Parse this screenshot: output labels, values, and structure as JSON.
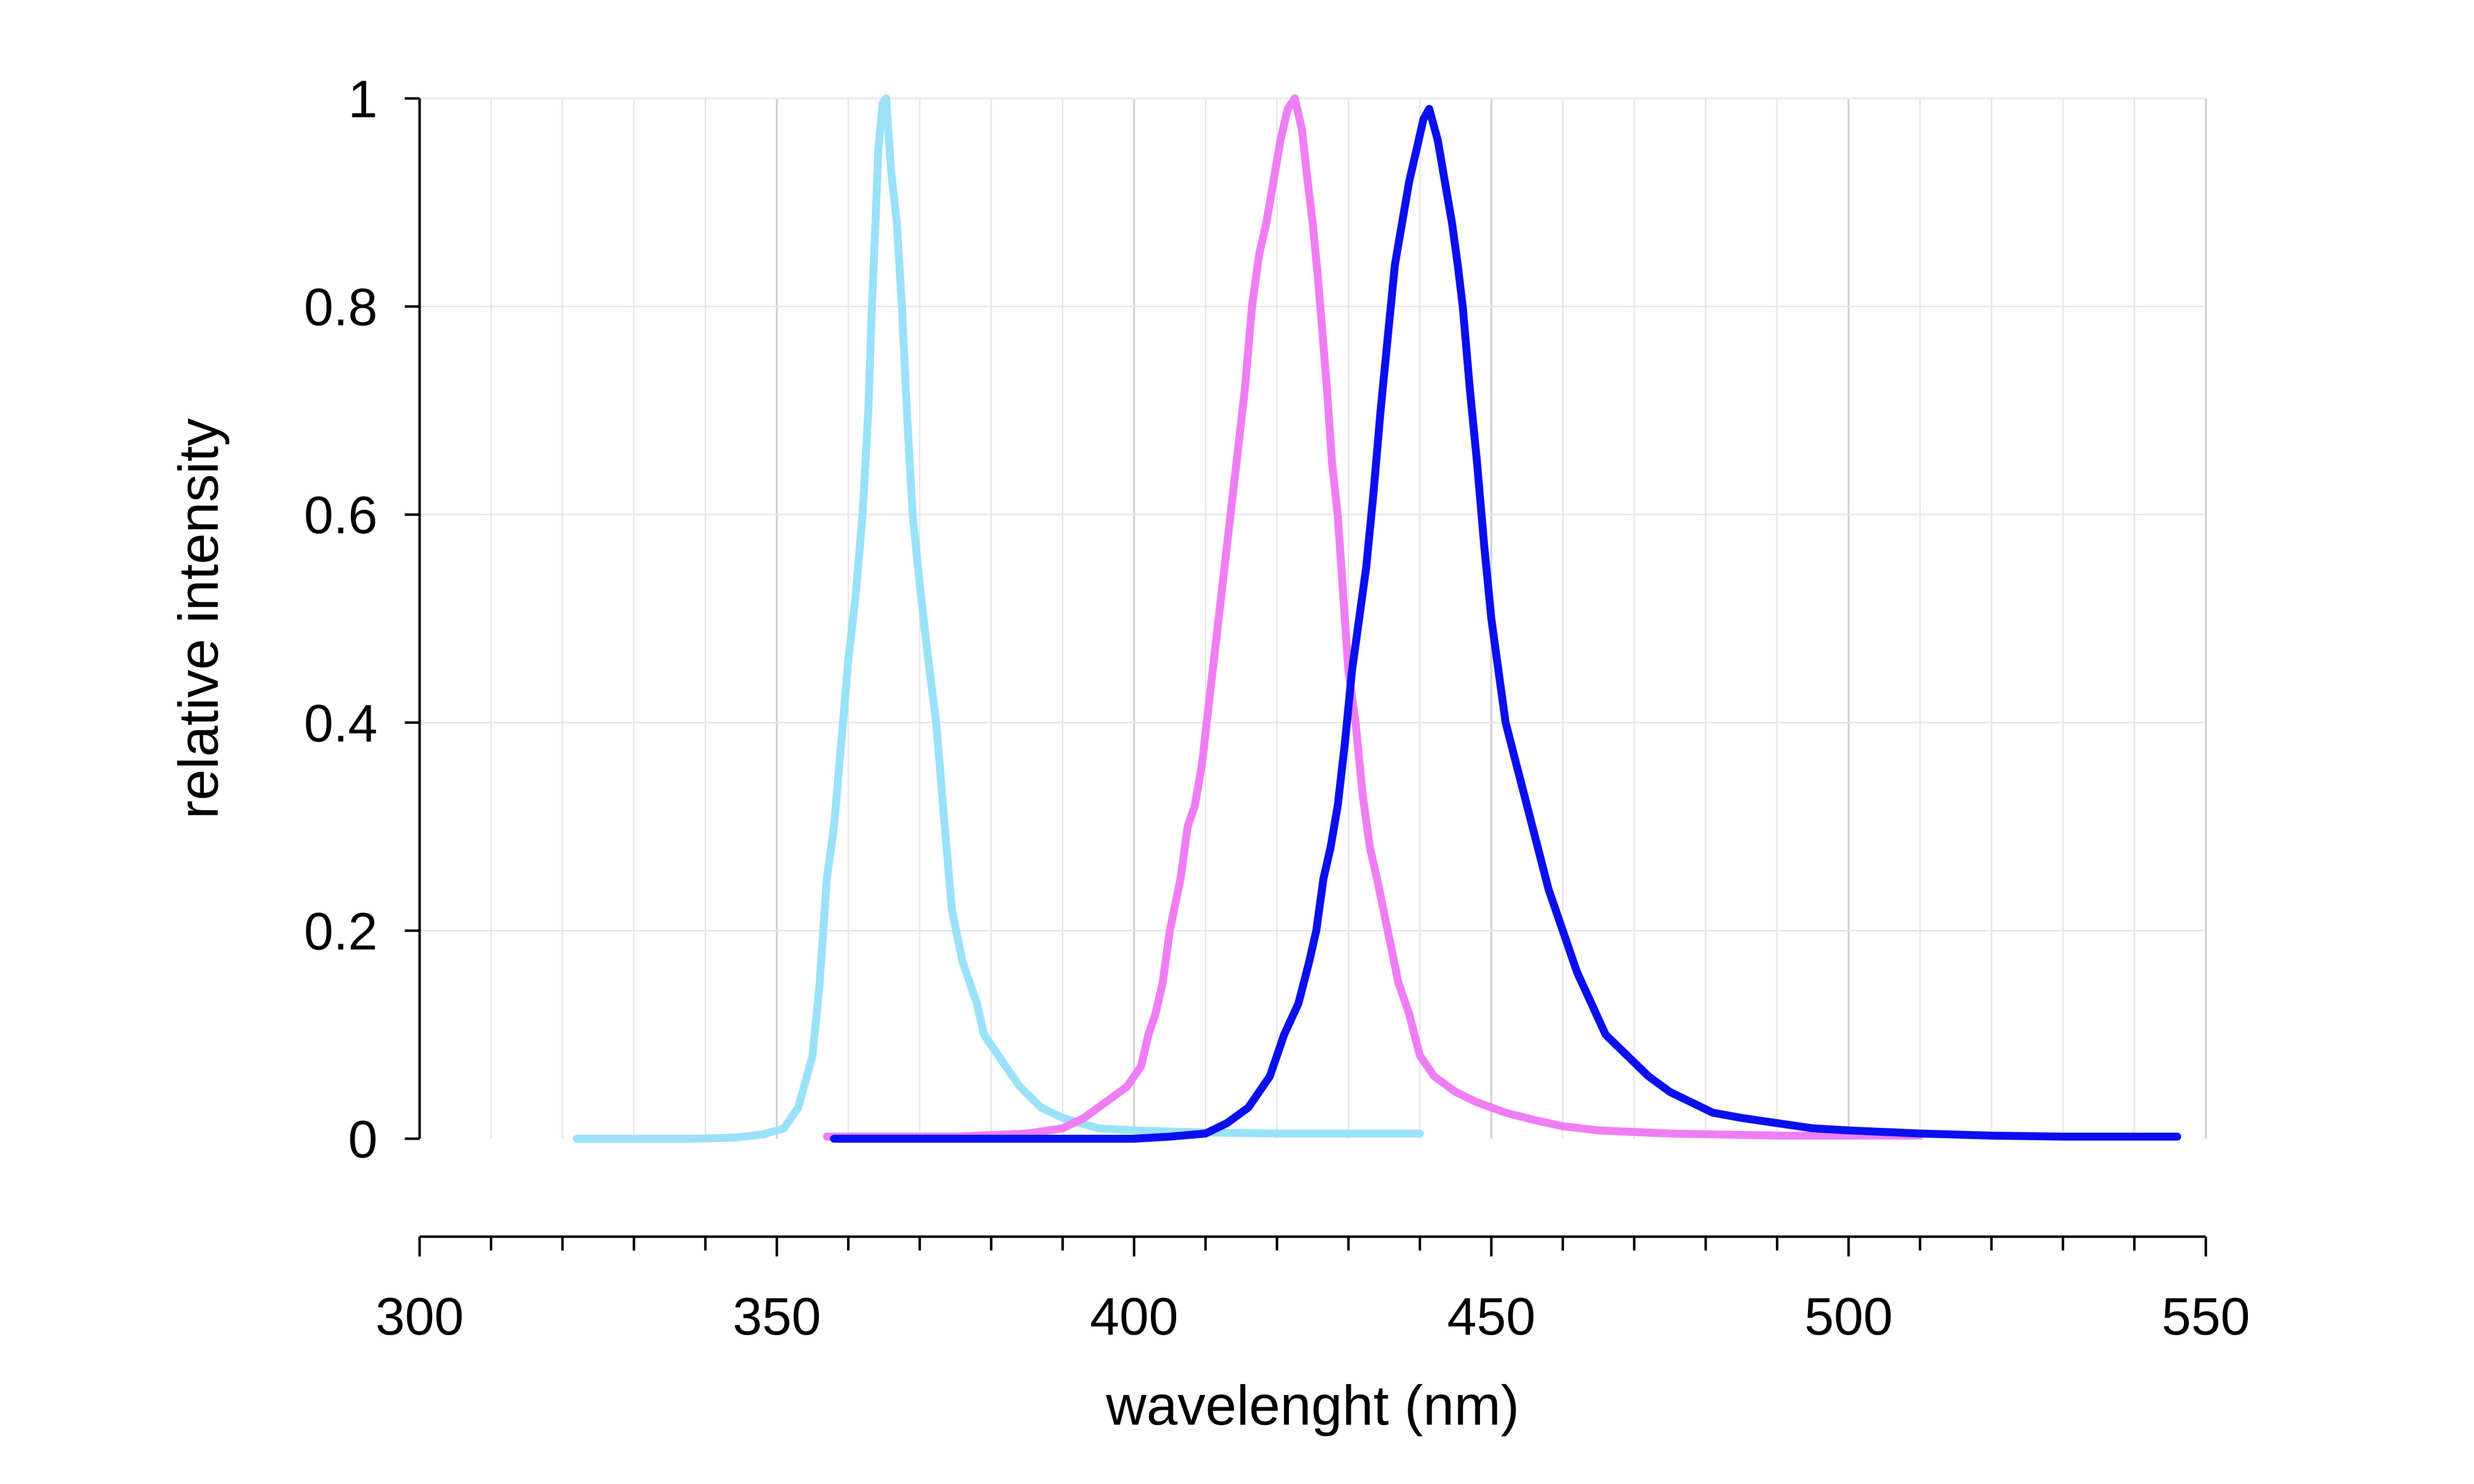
{
  "chart_data": {
    "type": "line",
    "title": "",
    "xlabel": "wavelenght (nm)",
    "ylabel": "relative intensity",
    "xlim": [
      300,
      550
    ],
    "ylim": [
      0,
      1
    ],
    "x_ticks": [
      300,
      350,
      400,
      450,
      500,
      550
    ],
    "x_tick_labels": [
      "300",
      "350",
      "400",
      "450",
      "500",
      "550"
    ],
    "x_minor_step": 10,
    "y_ticks": [
      0,
      0.2,
      0.4,
      0.6,
      0.8,
      1
    ],
    "y_tick_labels": [
      "0",
      "0.2",
      "0.4",
      "0.6",
      "0.8",
      "1"
    ],
    "grid": true,
    "legend": "none",
    "series": [
      {
        "color": "#99e2fa",
        "points": [
          [
            322,
            0.0
          ],
          [
            330,
            0.0
          ],
          [
            338,
            0.0
          ],
          [
            344,
            0.001
          ],
          [
            348,
            0.004
          ],
          [
            351,
            0.01
          ],
          [
            353,
            0.03
          ],
          [
            355,
            0.08
          ],
          [
            356,
            0.15
          ],
          [
            357,
            0.25
          ],
          [
            358,
            0.3
          ],
          [
            359,
            0.38
          ],
          [
            360,
            0.46
          ],
          [
            361,
            0.52
          ],
          [
            362,
            0.6
          ],
          [
            362.8,
            0.7
          ],
          [
            363.3,
            0.8
          ],
          [
            363.8,
            0.88
          ],
          [
            364.2,
            0.95
          ],
          [
            364.8,
            0.995
          ],
          [
            365.3,
            1.0
          ],
          [
            366,
            0.93
          ],
          [
            366.8,
            0.88
          ],
          [
            367.5,
            0.8
          ],
          [
            368.2,
            0.7
          ],
          [
            369,
            0.6
          ],
          [
            370.2,
            0.52
          ],
          [
            371.2,
            0.46
          ],
          [
            372.3,
            0.4
          ],
          [
            373.5,
            0.3
          ],
          [
            374.5,
            0.22
          ],
          [
            376,
            0.17
          ],
          [
            377,
            0.15
          ],
          [
            378,
            0.13
          ],
          [
            379,
            0.1
          ],
          [
            381,
            0.08
          ],
          [
            384,
            0.05
          ],
          [
            387,
            0.03
          ],
          [
            390,
            0.02
          ],
          [
            395,
            0.01
          ],
          [
            400,
            0.008
          ],
          [
            410,
            0.006
          ],
          [
            420,
            0.005
          ],
          [
            430,
            0.005
          ],
          [
            440,
            0.005
          ]
        ]
      },
      {
        "color": "#ef7df4",
        "points": [
          [
            357,
            0.002
          ],
          [
            365,
            0.002
          ],
          [
            375,
            0.002
          ],
          [
            385,
            0.005
          ],
          [
            390,
            0.01
          ],
          [
            393,
            0.02
          ],
          [
            395,
            0.03
          ],
          [
            397,
            0.04
          ],
          [
            399,
            0.05
          ],
          [
            401,
            0.07
          ],
          [
            402,
            0.1
          ],
          [
            403,
            0.12
          ],
          [
            404,
            0.15
          ],
          [
            405,
            0.2
          ],
          [
            406.5,
            0.25
          ],
          [
            407.5,
            0.3
          ],
          [
            408.5,
            0.32
          ],
          [
            409.5,
            0.36
          ],
          [
            410.5,
            0.42
          ],
          [
            411.5,
            0.48
          ],
          [
            412.5,
            0.54
          ],
          [
            413.5,
            0.6
          ],
          [
            414.5,
            0.66
          ],
          [
            415.5,
            0.72
          ],
          [
            416.5,
            0.8
          ],
          [
            417.5,
            0.85
          ],
          [
            418.5,
            0.88
          ],
          [
            419.5,
            0.92
          ],
          [
            420.5,
            0.96
          ],
          [
            421.5,
            0.99
          ],
          [
            422.5,
            1.0
          ],
          [
            423.5,
            0.97
          ],
          [
            424.3,
            0.92
          ],
          [
            425,
            0.88
          ],
          [
            425.7,
            0.83
          ],
          [
            426.3,
            0.78
          ],
          [
            427,
            0.72
          ],
          [
            427.7,
            0.65
          ],
          [
            428.5,
            0.6
          ],
          [
            429.2,
            0.53
          ],
          [
            430,
            0.45
          ],
          [
            431,
            0.4
          ],
          [
            432,
            0.33
          ],
          [
            433,
            0.28
          ],
          [
            434,
            0.25
          ],
          [
            435.5,
            0.2
          ],
          [
            437,
            0.15
          ],
          [
            438.5,
            0.12
          ],
          [
            440,
            0.08
          ],
          [
            442,
            0.06
          ],
          [
            445,
            0.045
          ],
          [
            448,
            0.035
          ],
          [
            452,
            0.025
          ],
          [
            456,
            0.018
          ],
          [
            460,
            0.012
          ],
          [
            465,
            0.008
          ],
          [
            475,
            0.005
          ],
          [
            490,
            0.003
          ],
          [
            510,
            0.003
          ]
        ]
      },
      {
        "color": "#0a0ff0",
        "points": [
          [
            358,
            0.0
          ],
          [
            370,
            0.0
          ],
          [
            380,
            0.0
          ],
          [
            390,
            0.0
          ],
          [
            400,
            0.0
          ],
          [
            405,
            0.002
          ],
          [
            410,
            0.005
          ],
          [
            413,
            0.015
          ],
          [
            416,
            0.03
          ],
          [
            419,
            0.06
          ],
          [
            421,
            0.1
          ],
          [
            423,
            0.13
          ],
          [
            424.5,
            0.17
          ],
          [
            425.5,
            0.2
          ],
          [
            426.5,
            0.25
          ],
          [
            427.5,
            0.28
          ],
          [
            428.5,
            0.32
          ],
          [
            429.5,
            0.38
          ],
          [
            430.5,
            0.45
          ],
          [
            431.5,
            0.5
          ],
          [
            432.5,
            0.55
          ],
          [
            433.5,
            0.62
          ],
          [
            434.5,
            0.7
          ],
          [
            435.5,
            0.77
          ],
          [
            436.5,
            0.84
          ],
          [
            437.5,
            0.88
          ],
          [
            438.5,
            0.92
          ],
          [
            439.5,
            0.95
          ],
          [
            440.5,
            0.98
          ],
          [
            441.3,
            0.99
          ],
          [
            442.5,
            0.96
          ],
          [
            443.5,
            0.92
          ],
          [
            444.5,
            0.88
          ],
          [
            445.3,
            0.84
          ],
          [
            446,
            0.8
          ],
          [
            447,
            0.72
          ],
          [
            448,
            0.65
          ],
          [
            449,
            0.57
          ],
          [
            450,
            0.5
          ],
          [
            451,
            0.45
          ],
          [
            452,
            0.4
          ],
          [
            453.5,
            0.36
          ],
          [
            455,
            0.32
          ],
          [
            456.5,
            0.28
          ],
          [
            458,
            0.24
          ],
          [
            460,
            0.2
          ],
          [
            462,
            0.16
          ],
          [
            464,
            0.13
          ],
          [
            466,
            0.1
          ],
          [
            469,
            0.08
          ],
          [
            472,
            0.06
          ],
          [
            475,
            0.045
          ],
          [
            478,
            0.035
          ],
          [
            481,
            0.025
          ],
          [
            485,
            0.02
          ],
          [
            490,
            0.015
          ],
          [
            495,
            0.01
          ],
          [
            500,
            0.008
          ],
          [
            510,
            0.005
          ],
          [
            520,
            0.003
          ],
          [
            530,
            0.002
          ],
          [
            540,
            0.002
          ],
          [
            546,
            0.002
          ]
        ]
      }
    ]
  }
}
